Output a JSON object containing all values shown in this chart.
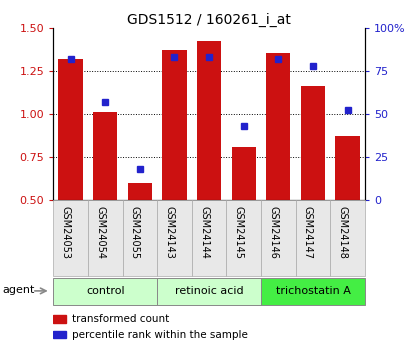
{
  "title": "GDS1512 / 160261_i_at",
  "samples": [
    "GSM24053",
    "GSM24054",
    "GSM24055",
    "GSM24143",
    "GSM24144",
    "GSM24145",
    "GSM24146",
    "GSM24147",
    "GSM24148"
  ],
  "transformed_count": [
    1.32,
    1.01,
    0.6,
    1.37,
    1.42,
    0.81,
    1.35,
    1.16,
    0.87
  ],
  "percentile_rank": [
    82,
    57,
    18,
    83,
    83,
    43,
    82,
    78,
    52
  ],
  "ylim_left": [
    0.5,
    1.5
  ],
  "ylim_right": [
    0,
    100
  ],
  "yticks_left": [
    0.5,
    0.75,
    1.0,
    1.25,
    1.5
  ],
  "yticks_right": [
    0,
    25,
    50,
    75,
    100
  ],
  "ytick_labels_right": [
    "0",
    "25",
    "50",
    "75",
    "100%"
  ],
  "bar_color": "#cc1111",
  "dot_color": "#2222cc",
  "groups": [
    {
      "label": "control",
      "samples": [
        0,
        1,
        2
      ],
      "color": "#ccffcc"
    },
    {
      "label": "retinoic acid",
      "samples": [
        3,
        4,
        5
      ],
      "color": "#ccffcc"
    },
    {
      "label": "trichostatin A",
      "samples": [
        6,
        7,
        8
      ],
      "color": "#44ee44"
    }
  ],
  "agent_label": "agent",
  "legend_items": [
    {
      "label": "transformed count",
      "color": "#cc1111"
    },
    {
      "label": "percentile rank within the sample",
      "color": "#2222cc"
    }
  ],
  "grid_yticks": [
    0.75,
    1.0,
    1.25
  ],
  "bar_width": 0.7
}
